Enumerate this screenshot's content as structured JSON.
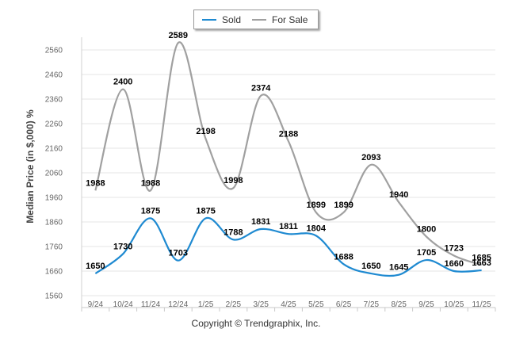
{
  "chart_data": {
    "type": "line",
    "title": "",
    "xlabel": "",
    "ylabel": "Median Price (in $,000) %",
    "categories": [
      "9/24",
      "10/24",
      "11/24",
      "12/24",
      "1/25",
      "2/25",
      "3/25",
      "4/25",
      "5/25",
      "6/25",
      "7/25",
      "8/25",
      "9/25",
      "10/25",
      "11/25"
    ],
    "ylim": [
      1560,
      2600
    ],
    "yticks": [
      1560,
      1660,
      1760,
      1860,
      1960,
      2060,
      2160,
      2260,
      2360,
      2460,
      2560
    ],
    "grid": true,
    "legend": "top-center",
    "series": [
      {
        "name": "Sold",
        "color": "#1f8ad1",
        "values": [
          1650,
          1730,
          1875,
          1703,
          1875,
          1788,
          1831,
          1811,
          1804,
          1688,
          1650,
          1645,
          1705,
          1660,
          1663
        ]
      },
      {
        "name": "For Sale",
        "color": "#a0a0a0",
        "values": [
          1988,
          2400,
          1988,
          2589,
          2198,
          1998,
          2374,
          2188,
          1899,
          1899,
          2093,
          1940,
          1800,
          1723,
          1685
        ]
      }
    ]
  },
  "footer": {
    "copyright": "Copyright © Trendgraphix, Inc."
  }
}
